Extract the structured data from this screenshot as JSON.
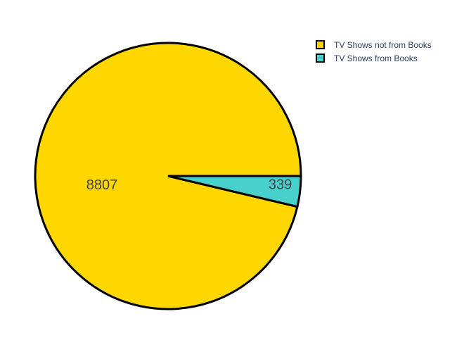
{
  "chart_data": {
    "type": "pie",
    "categories": [
      "TV Shows not from Books",
      "TV Shows from Books"
    ],
    "values": [
      8807,
      339
    ],
    "colors": [
      "#FFD700",
      "#48D1CC"
    ],
    "slice_labels": [
      "8807",
      "339"
    ],
    "start_angle": "3 o'clock",
    "direction": "counterclockwise",
    "slice_outline": "#000000",
    "legend_position": "top-right",
    "title": ""
  }
}
